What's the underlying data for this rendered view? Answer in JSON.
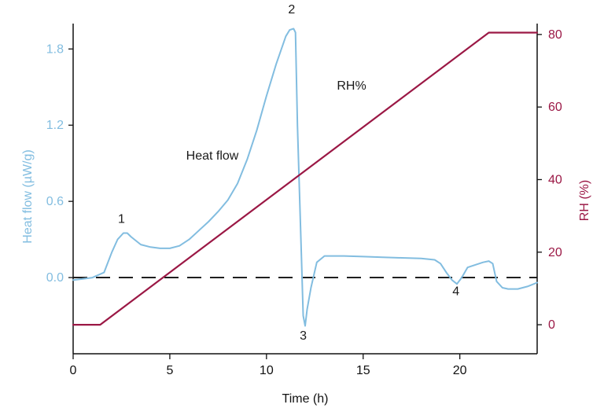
{
  "chart_data": {
    "type": "line",
    "xlabel": "Time (h)",
    "ylabel_left": "Heat flow (µW/g)",
    "ylabel_right": "RH (%)",
    "xlim": [
      0,
      24
    ],
    "ylim_left": [
      -0.6,
      2.0
    ],
    "ylim_right": [
      -8,
      83
    ],
    "x_ticks": [
      0,
      5,
      10,
      15,
      20
    ],
    "y_left_ticks": [
      0.0,
      0.6,
      1.2,
      1.8
    ],
    "y_left_tick_labels": [
      "0.0",
      "0.6",
      "1.2",
      "1.8"
    ],
    "y_right_ticks": [
      0,
      20,
      40,
      60,
      80
    ],
    "grid": false,
    "colors": {
      "heat_flow": "#82bde0",
      "rh": "#9b1845",
      "baseline": "#111111",
      "axis": "#111111"
    },
    "series": [
      {
        "name": "Heat flow",
        "axis": "left",
        "x": [
          0,
          0.5,
          1,
          1.6,
          2.0,
          2.3,
          2.6,
          2.8,
          3.0,
          3.5,
          4.0,
          4.5,
          5.0,
          5.5,
          6.0,
          6.5,
          7.0,
          7.5,
          8.0,
          8.5,
          9.0,
          9.5,
          10.0,
          10.5,
          11.0,
          11.2,
          11.4,
          11.5,
          11.6,
          11.8,
          11.9,
          12.0,
          12.1,
          12.3,
          12.6,
          13.0,
          14.0,
          15.0,
          16.0,
          17.0,
          18.0,
          18.7,
          19.0,
          19.3,
          19.6,
          19.85,
          20.1,
          20.4,
          20.8,
          21.2,
          21.5,
          21.7,
          21.9,
          22.2,
          22.5,
          23.0,
          23.5,
          24.0
        ],
        "y": [
          -0.02,
          -0.01,
          0.0,
          0.04,
          0.2,
          0.3,
          0.35,
          0.35,
          0.32,
          0.26,
          0.24,
          0.23,
          0.23,
          0.25,
          0.3,
          0.37,
          0.44,
          0.52,
          0.61,
          0.74,
          0.93,
          1.16,
          1.43,
          1.68,
          1.9,
          1.95,
          1.96,
          1.93,
          1.2,
          0.2,
          -0.3,
          -0.38,
          -0.25,
          -0.08,
          0.12,
          0.17,
          0.17,
          0.165,
          0.16,
          0.155,
          0.15,
          0.14,
          0.11,
          0.04,
          -0.02,
          -0.05,
          0.0,
          0.08,
          0.1,
          0.12,
          0.13,
          0.11,
          -0.03,
          -0.08,
          -0.09,
          -0.09,
          -0.07,
          -0.04
        ]
      },
      {
        "name": "RH%",
        "axis": "right",
        "x": [
          0,
          1.4,
          21.5,
          24
        ],
        "y": [
          0,
          0,
          80.5,
          80.5
        ]
      }
    ],
    "baseline": {
      "axis": "left",
      "y": 0.0,
      "style": "dashed"
    },
    "annotations": [
      {
        "text": "1",
        "x": 2.5,
        "y": 0.43,
        "axis": "left"
      },
      {
        "text": "2",
        "x": 11.3,
        "y": 2.08,
        "axis": "left"
      },
      {
        "text": "3",
        "x": 11.9,
        "y": -0.49,
        "axis": "left"
      },
      {
        "text": "4",
        "x": 19.8,
        "y": -0.14,
        "axis": "left"
      },
      {
        "text": "Heat flow",
        "x": 7.2,
        "y": 0.93,
        "axis": "left"
      },
      {
        "text": "RH%",
        "x": 14.4,
        "y": 1.48,
        "axis": "left"
      }
    ]
  }
}
